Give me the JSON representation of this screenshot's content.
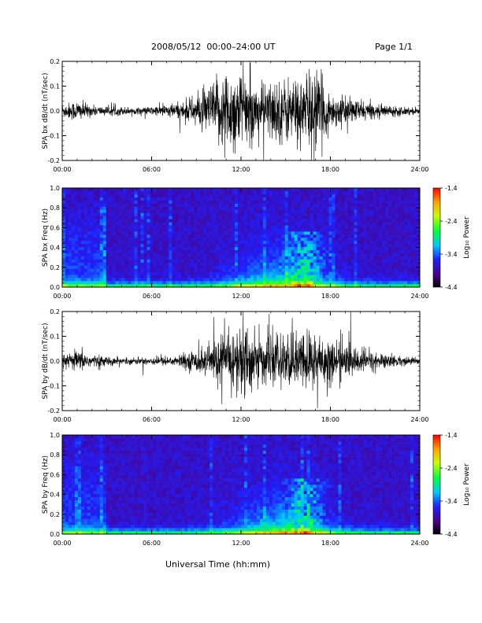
{
  "header": {
    "title": "2008/05/12  00:00–24:00 UT",
    "page": "Page 1/1"
  },
  "footer": {
    "xlabel": "Universal Time (hh:mm)"
  },
  "chart_data": [
    {
      "type": "line",
      "ylabel": "SPA bx dB/dt (nT/sec)",
      "xlim": [
        "00:00",
        "24:00"
      ],
      "ylim": [
        -0.2,
        0.2
      ],
      "xticks": [
        "00:00",
        "06:00",
        "12:00",
        "18:00",
        "24:00"
      ],
      "yticks": [
        "-0.2",
        "-0.1",
        "0.0",
        "0.1",
        "0.2"
      ],
      "envelope": {
        "hours": [
          0,
          1,
          2,
          3,
          4,
          5,
          6,
          7,
          8,
          9,
          10,
          11,
          12,
          13,
          14,
          15,
          16,
          17,
          18,
          19,
          20,
          21,
          22,
          23,
          24
        ],
        "amplitude": [
          0.03,
          0.05,
          0.025,
          0.02,
          0.02,
          0.015,
          0.02,
          0.03,
          0.04,
          0.07,
          0.12,
          0.2,
          0.18,
          0.12,
          0.14,
          0.15,
          0.16,
          0.2,
          0.08,
          0.06,
          0.05,
          0.03,
          0.025,
          0.02,
          0.015
        ]
      }
    },
    {
      "type": "heatmap",
      "ylabel": "SPA bx Freq (Hz)",
      "xlim": [
        "00:00",
        "24:00"
      ],
      "ylim": [
        0.0,
        1.0
      ],
      "xticks": [
        "00:00",
        "06:00",
        "12:00",
        "18:00",
        "24:00"
      ],
      "yticks": [
        "0.0",
        "0.2",
        "0.4",
        "0.6",
        "0.8",
        "1.0"
      ],
      "colorbar": {
        "label": "Log₁₀ Power",
        "range": [
          -4.4,
          -1.4
        ],
        "ticks": [
          "-1.4",
          "-2.4",
          "-3.4",
          "-4.4"
        ]
      }
    },
    {
      "type": "line",
      "ylabel": "SPA by dB/dt (nT/sec)",
      "xlim": [
        "00:00",
        "24:00"
      ],
      "ylim": [
        -0.2,
        0.2
      ],
      "xticks": [
        "00:00",
        "06:00",
        "12:00",
        "18:00",
        "24:00"
      ],
      "yticks": [
        "-0.2",
        "-0.1",
        "0.0",
        "0.1",
        "0.2"
      ],
      "envelope": {
        "hours": [
          0,
          1,
          2,
          3,
          4,
          5,
          6,
          7,
          8,
          9,
          10,
          11,
          12,
          13,
          14,
          15,
          16,
          17,
          18,
          19,
          20,
          21,
          22,
          23,
          24
        ],
        "amplitude": [
          0.02,
          0.05,
          0.03,
          0.02,
          0.015,
          0.015,
          0.02,
          0.02,
          0.03,
          0.05,
          0.08,
          0.12,
          0.18,
          0.12,
          0.1,
          0.12,
          0.13,
          0.15,
          0.1,
          0.08,
          0.06,
          0.04,
          0.03,
          0.02,
          0.015
        ]
      }
    },
    {
      "type": "heatmap",
      "ylabel": "SPA by Freq (Hz)",
      "xlim": [
        "00:00",
        "24:00"
      ],
      "ylim": [
        0.0,
        1.0
      ],
      "xticks": [
        "00:00",
        "06:00",
        "12:00",
        "18:00",
        "24:00"
      ],
      "yticks": [
        "0.0",
        "0.2",
        "0.4",
        "0.6",
        "0.8",
        "1.0"
      ],
      "colorbar": {
        "label": "Log₁₀ Power",
        "range": [
          -4.4,
          -1.4
        ],
        "ticks": [
          "-1.4",
          "-2.4",
          "-3.4",
          "-4.4"
        ]
      }
    }
  ]
}
